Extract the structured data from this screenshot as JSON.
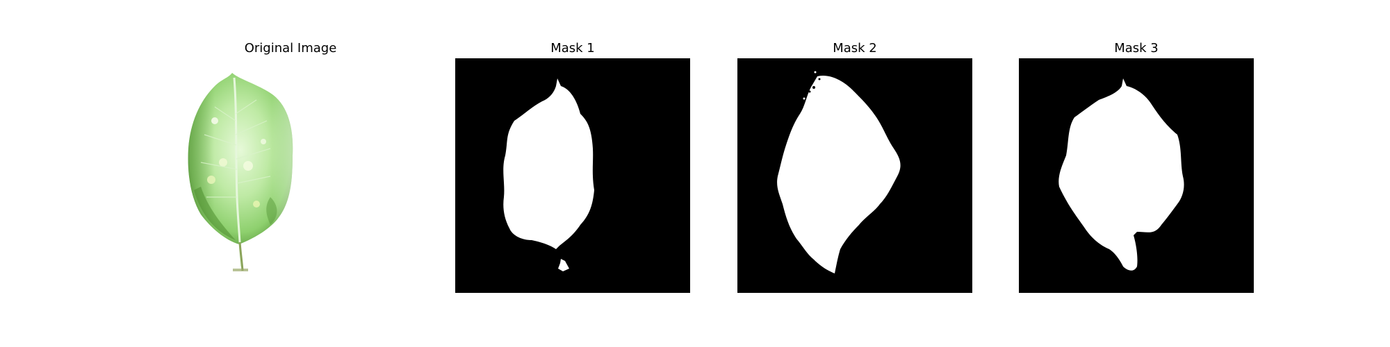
{
  "figure": {
    "panels": [
      {
        "title": "Original Image",
        "content": "leaf-photo"
      },
      {
        "title": "Mask 1",
        "content": "binary-mask"
      },
      {
        "title": "Mask 2",
        "content": "binary-mask"
      },
      {
        "title": "Mask 3",
        "content": "binary-mask"
      }
    ]
  },
  "colors": {
    "background": "#ffffff",
    "mask_background": "#000000",
    "mask_foreground": "#ffffff",
    "leaf_light": "#d8f5c8",
    "leaf_mid": "#9fdc84",
    "leaf_dark": "#5da040",
    "vein": "#e9f9e2"
  }
}
